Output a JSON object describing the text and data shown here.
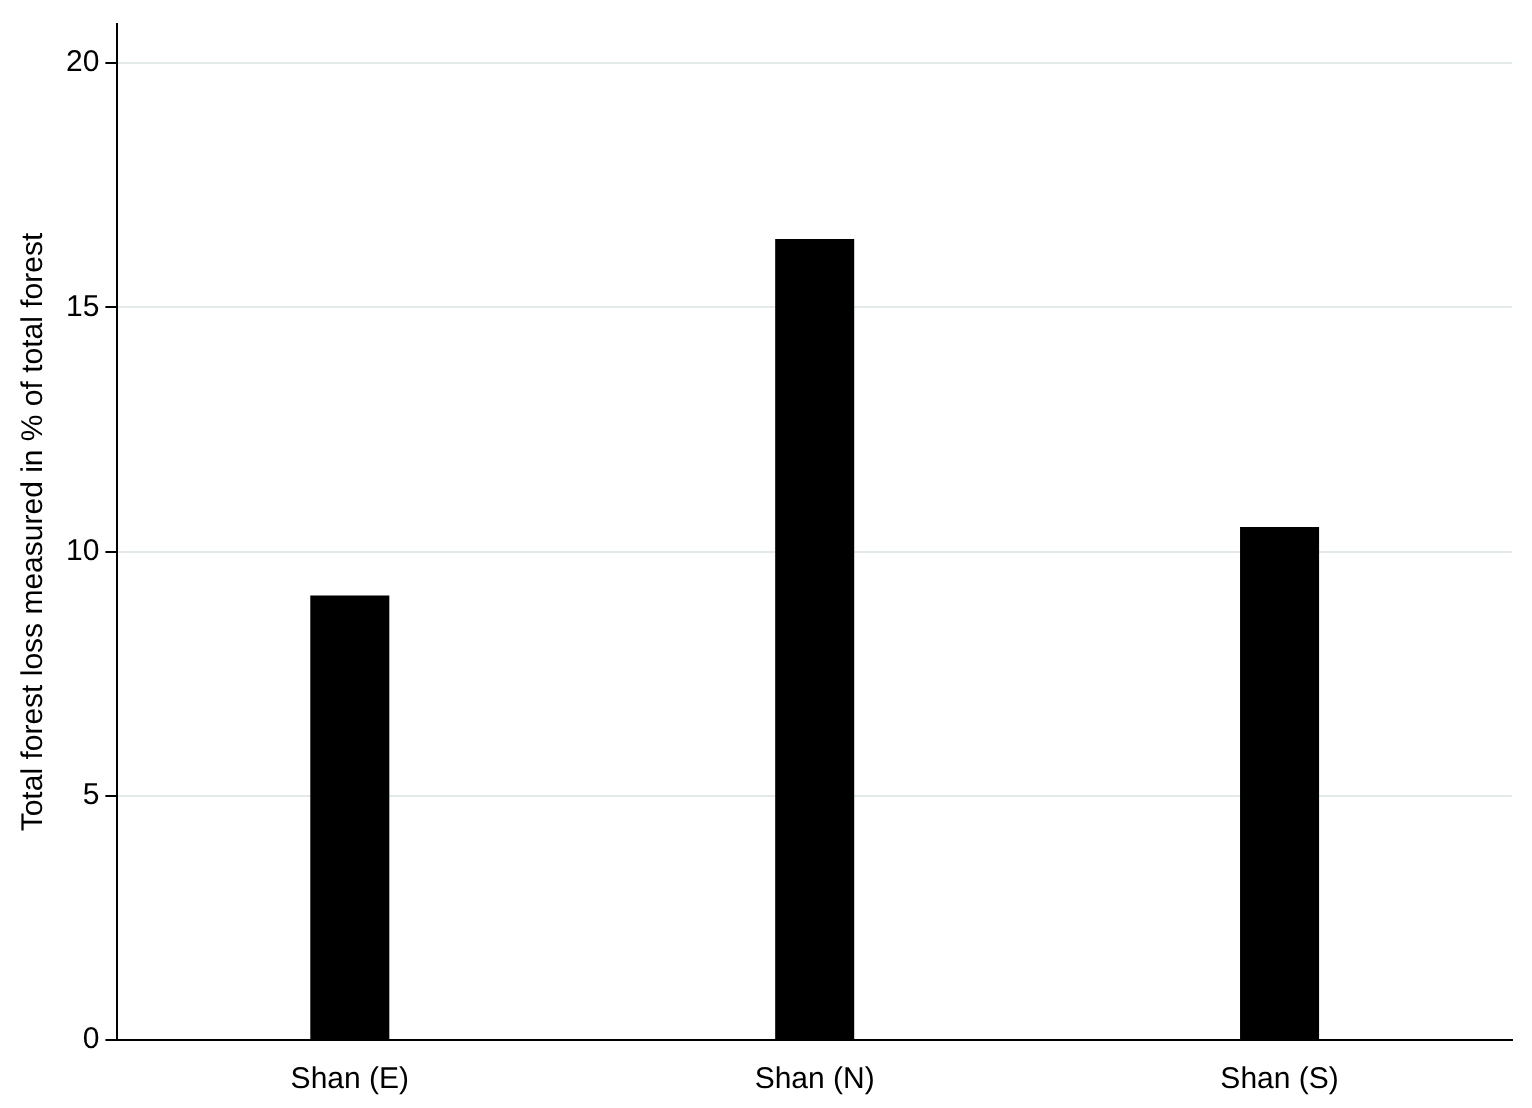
{
  "chart_data": {
    "type": "bar",
    "ylabel": "Total forest loss measured in % of total forest",
    "categories": [
      "Shan (E)",
      "Shan (N)",
      "Shan (S)"
    ],
    "values": [
      9.1,
      16.4,
      10.5
    ],
    "color": "#000000",
    "ylim": [
      0,
      20.8
    ],
    "yticks": [
      0,
      5,
      10,
      15,
      20
    ],
    "grid": "y"
  }
}
